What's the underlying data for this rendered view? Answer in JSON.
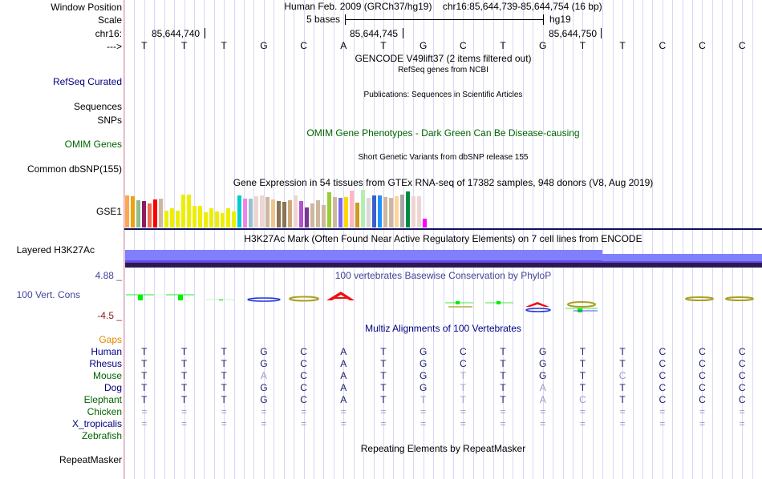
{
  "labels": {
    "window_position": "Window Position",
    "scale": "Scale",
    "chrom": "chr16:",
    "strand": "--->",
    "refseq": "RefSeq Curated",
    "sequences": "Sequences",
    "snps": "SNPs",
    "omim": "OMIM Genes",
    "dbsnp": "Common dbSNP(155)",
    "gse1": "GSE1",
    "h3k27ac": "Layered H3K27Ac",
    "cons_max": "4.88 _",
    "cons": "100 Vert. Cons",
    "cons_min": "-4.5 _",
    "gaps": "Gaps",
    "repeatmasker": "RepeatMasker"
  },
  "header": {
    "assembly": "Human Feb. 2009 (GRCh37/hg19)",
    "position": "chr16:85,644,739-85,644,754 (16 bp)",
    "scale_text": "5 bases",
    "scale_db": "hg19",
    "coords": [
      "85,644,740",
      "85,644,745",
      "85,644,750"
    ]
  },
  "sequence": [
    "T",
    "T",
    "T",
    "G",
    "C",
    "A",
    "T",
    "G",
    "C",
    "T",
    "G",
    "T",
    "T",
    "C",
    "C",
    "C"
  ],
  "track_titles": {
    "gencode": "GENCODE V49lift37 (2 items filtered out)",
    "refseq": "RefSeq genes from NCBI",
    "pubs": "Publications: Sequences in Scientific Articles",
    "omim": "OMIM Gene Phenotypes - Dark Green Can Be Disease-causing",
    "dbsnp": "Short Genetic Variants from dbSNP release 155",
    "gtex": "Gene Expression in 54 tissues from GTEx RNA-seq of 17382 samples, 948 donors (V8, Aug 2019)",
    "h3k27ac": "H3K27Ac Mark (Often Found Near Active Regulatory Elements) on 7 cell lines from ENCODE",
    "phylop": "100 vertebrates Basewise Conservation by PhyloP",
    "multiz": "Multiz Alignments of 100 Vertebrates",
    "rmsk": "Repeating Elements by RepeatMasker"
  },
  "gtex": {
    "relative_levels": [
      0.86,
      0.82,
      0.72,
      0.7,
      0.64,
      0.75,
      0.77,
      0.44,
      0.52,
      0.44,
      0.88,
      0.88,
      0.58,
      0.58,
      0.41,
      0.52,
      0.43,
      0.38,
      0.5,
      0.43,
      0.86,
      0.77,
      0.77,
      0.83,
      0.86,
      0.8,
      0.74,
      0.7,
      0.68,
      0.72,
      0.85,
      0.7,
      0.54,
      0.64,
      0.72,
      0.6,
      0.93,
      0.8,
      0.78,
      0.8,
      0.98,
      0.66,
      1.0,
      0.78,
      0.86,
      0.86,
      0.8,
      0.78,
      0.83,
      0.87,
      0.95,
      0.82,
      0.84,
      0.24
    ],
    "colors": [
      "#FFA54F",
      "#EEA20D",
      "#8FBC8F",
      "#8B1C62",
      "#EE6A50",
      "#FF0000",
      "#CDB79E",
      "#EEEE00",
      "#EEEE00",
      "#EEEE00",
      "#EEEE00",
      "#EEEE00",
      "#EEEE00",
      "#EEEE00",
      "#EEEE00",
      "#EEEE00",
      "#EEEE00",
      "#EEEE00",
      "#EEEE00",
      "#EEEE00",
      "#00CDCD",
      "#EE82EE",
      "#9AC0CD",
      "#EED5D2",
      "#EED5D2",
      "#CDB79E",
      "#EEC591",
      "#8B7355",
      "#8B7355",
      "#CDAA7D",
      "#EED5D2",
      "#B452CD",
      "#7A378B",
      "#CDB79E",
      "#CDB79E",
      "#CDB79E",
      "#9ACD32",
      "#CDB79E",
      "#7B68EE",
      "#FFD700",
      "#FFB6C1",
      "#CD9B1D",
      "#B4EEB4",
      "#D9D9D9",
      "#3A5FCD",
      "#1E90FF",
      "#CDB79E",
      "#CDB79E",
      "#FFD39B",
      "#A6A6A6",
      "#008B45",
      "#EED5D2",
      "#EED5D2",
      "#FF00FF"
    ]
  },
  "alignment": {
    "species": [
      {
        "name": "Human",
        "color": "#000080"
      },
      {
        "name": "Rhesus",
        "color": "#000080"
      },
      {
        "name": "Mouse",
        "color": "#006400"
      },
      {
        "name": "Dog",
        "color": "#000080"
      },
      {
        "name": "Elephant",
        "color": "#006400"
      },
      {
        "name": "Chicken",
        "color": "#006400"
      },
      {
        "name": "X_tropicalis",
        "color": "#000080"
      },
      {
        "name": "Zebrafish",
        "color": "#006400"
      }
    ],
    "rows": [
      "TTTGCATGCTGTTCCC",
      "TTTGCATGCTGTTCCC",
      "TTTACATGTTGTCCCC",
      "TTTGCATGTTATTCCC",
      "TTTGCATTTTACTCCC",
      "================",
      "================",
      ""
    ]
  },
  "colors": {
    "label_blue": "#000080",
    "label_green": "#006400",
    "label_orange": "#E08A00",
    "cons_blue": "#444499",
    "cons_red": "#8B2222",
    "h3k_light": "#8080FF",
    "h3k_dark": "#2A1A50"
  }
}
